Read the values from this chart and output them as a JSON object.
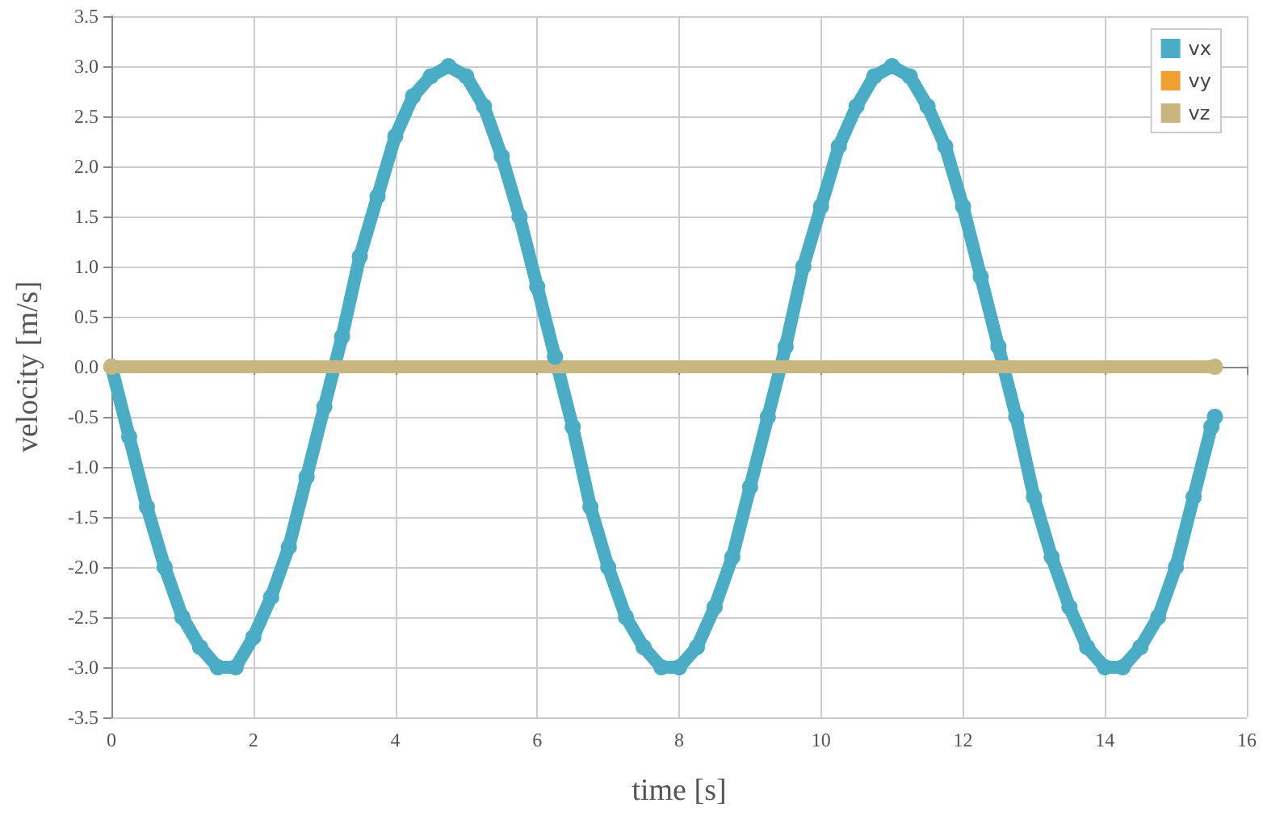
{
  "chart_data": {
    "type": "line",
    "xlabel": "time [s]",
    "ylabel": "velocity [m/s]",
    "xlim": [
      0,
      16
    ],
    "xticks": [
      0,
      2,
      4,
      6,
      8,
      10,
      12,
      14,
      16
    ],
    "ylim": [
      -3.5,
      3.5
    ],
    "yticks": [
      {
        "value": -3.5,
        "label": "-3.5"
      },
      {
        "value": -3,
        "label": "-3.0"
      },
      {
        "value": -2.5,
        "label": "-2.5"
      },
      {
        "value": -2,
        "label": "-2.0"
      },
      {
        "value": -1.5,
        "label": "-1.5"
      },
      {
        "value": -1,
        "label": "-1.0"
      },
      {
        "value": -0.5,
        "label": "-0.5"
      },
      {
        "value": 0,
        "label": "0.0"
      },
      {
        "value": 0.5,
        "label": "0.5"
      },
      {
        "value": 1,
        "label": "1.0"
      },
      {
        "value": 1.5,
        "label": "1.5"
      },
      {
        "value": 2,
        "label": "2.0"
      },
      {
        "value": 2.5,
        "label": "2.5"
      },
      {
        "value": 3,
        "label": "3.0"
      },
      {
        "value": 3.5,
        "label": "3.5"
      }
    ],
    "grid": true,
    "legend": "top right",
    "marker": "circle",
    "line_style": "solid",
    "series": [
      {
        "name": "vx",
        "color": "#4bacc6",
        "x": [
          0,
          0.25,
          0.5,
          0.75,
          1,
          1.25,
          1.5,
          1.75,
          2,
          2.25,
          2.5,
          2.75,
          3,
          3.25,
          3.5,
          3.75,
          4,
          4.25,
          4.5,
          4.75,
          5,
          5.25,
          5.5,
          5.75,
          6,
          6.25,
          6.5,
          6.75,
          7,
          7.25,
          7.5,
          7.75,
          8,
          8.25,
          8.5,
          8.75,
          9,
          9.25,
          9.5,
          9.75,
          10,
          10.25,
          10.5,
          10.75,
          11,
          11.25,
          11.5,
          11.75,
          12,
          12.25,
          12.5,
          12.75,
          13,
          13.25,
          13.5,
          13.75,
          14,
          14.25,
          14.5,
          14.75,
          15,
          15.25,
          15.5,
          15.55
        ],
        "values": [
          0,
          -0.7,
          -1.4,
          -2.0,
          -2.5,
          -2.8,
          -3.0,
          -3.0,
          -2.7,
          -2.3,
          -1.8,
          -1.1,
          -0.4,
          0.3,
          1.1,
          1.7,
          2.3,
          2.7,
          2.9,
          3.0,
          2.9,
          2.6,
          2.1,
          1.5,
          0.8,
          0.1,
          -0.6,
          -1.4,
          -2.0,
          -2.5,
          -2.8,
          -3.0,
          -3.0,
          -2.8,
          -2.4,
          -1.9,
          -1.2,
          -0.5,
          0.2,
          1.0,
          1.6,
          2.2,
          2.6,
          2.9,
          3.0,
          2.9,
          2.6,
          2.2,
          1.6,
          0.9,
          0.2,
          -0.5,
          -1.3,
          -1.9,
          -2.4,
          -2.8,
          -3.0,
          -3.0,
          -2.8,
          -2.5,
          -2.0,
          -1.3,
          -0.6,
          -0.5
        ]
      },
      {
        "name": "vy",
        "color": "#f0a030"
      },
      {
        "name": "vz",
        "color": "#c8b57f",
        "x": [
          0,
          15.55
        ],
        "values": [
          0,
          0
        ]
      }
    ]
  }
}
